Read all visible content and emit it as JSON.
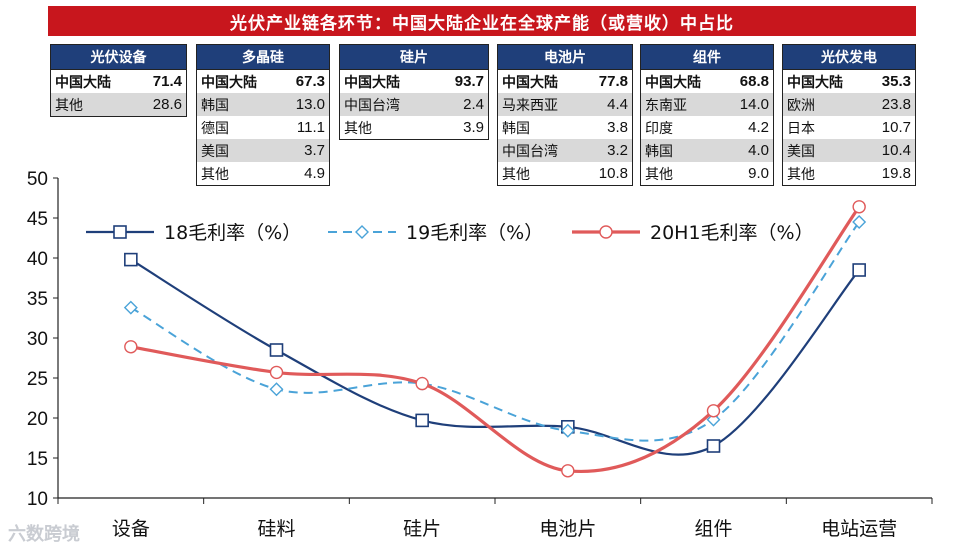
{
  "title": "光伏产业链各环节：中国大陆企业在全球产能（或营收）中占比",
  "tables": [
    {
      "header": "光伏设备",
      "rows": [
        [
          "中国大陆",
          "71.4"
        ],
        [
          "其他",
          "28.6"
        ]
      ]
    },
    {
      "header": "多晶硅",
      "rows": [
        [
          "中国大陆",
          "67.3"
        ],
        [
          "韩国",
          "13.0"
        ],
        [
          "德国",
          "11.1"
        ],
        [
          "美国",
          "3.7"
        ],
        [
          "其他",
          "4.9"
        ]
      ]
    },
    {
      "header": "硅片",
      "rows": [
        [
          "中国大陆",
          "93.7"
        ],
        [
          "中国台湾",
          "2.4"
        ],
        [
          "其他",
          "3.9"
        ]
      ]
    },
    {
      "header": "电池片",
      "rows": [
        [
          "中国大陆",
          "77.8"
        ],
        [
          "马来西亚",
          "4.4"
        ],
        [
          "韩国",
          "3.8"
        ],
        [
          "中国台湾",
          "3.2"
        ],
        [
          "其他",
          "10.8"
        ]
      ]
    },
    {
      "header": "组件",
      "rows": [
        [
          "中国大陆",
          "68.8"
        ],
        [
          "东南亚",
          "14.0"
        ],
        [
          "印度",
          "4.2"
        ],
        [
          "韩国",
          "4.0"
        ],
        [
          "其他",
          "9.0"
        ]
      ]
    },
    {
      "header": "光伏发电",
      "rows": [
        [
          "中国大陆",
          "35.3"
        ],
        [
          "欧洲",
          "23.8"
        ],
        [
          "日本",
          "10.7"
        ],
        [
          "美国",
          "10.4"
        ],
        [
          "其他",
          "19.8"
        ]
      ]
    }
  ],
  "chart_data": {
    "type": "line",
    "categories": [
      "设备",
      "硅料",
      "硅片",
      "电池片",
      "组件",
      "电站运营"
    ],
    "series": [
      {
        "name": "18毛利率（%）",
        "values": [
          39.8,
          28.5,
          19.7,
          18.9,
          16.5,
          38.5
        ],
        "color": "#1f3f7a",
        "marker": "square",
        "dash": "solid"
      },
      {
        "name": "19毛利率（%）",
        "values": [
          33.8,
          23.6,
          24.3,
          18.4,
          19.8,
          44.5
        ],
        "color": "#4aa3d8",
        "marker": "diamond",
        "dash": "dashed"
      },
      {
        "name": "20H1毛利率（%）",
        "values": [
          28.9,
          25.7,
          24.3,
          13.4,
          20.9,
          46.4
        ],
        "color": "#e05a5a",
        "marker": "circle",
        "dash": "solid"
      }
    ],
    "ylim": [
      10,
      50
    ],
    "yticks": [
      "10",
      "15",
      "20",
      "25",
      "30",
      "35",
      "40",
      "45",
      "50"
    ],
    "legend": "top"
  },
  "watermark": "六数跨境"
}
